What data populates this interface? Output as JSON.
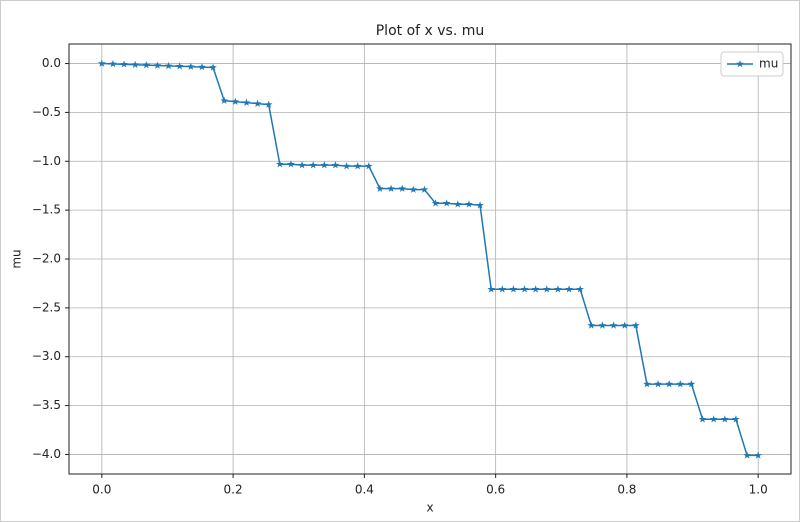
{
  "chart_data": {
    "type": "line",
    "title": "Plot of x vs. mu",
    "x_label": "x",
    "y_label": "mu",
    "x": [
      0,
      0.016949,
      0.033898,
      0.050847,
      0.067797,
      0.084746,
      0.101695,
      0.118644,
      0.135593,
      0.152542,
      0.169492,
      0.186441,
      0.20339,
      0.220339,
      0.237288,
      0.254237,
      0.271186,
      0.288136,
      0.305085,
      0.322034,
      0.338983,
      0.355932,
      0.372881,
      0.389831,
      0.40678,
      0.423729,
      0.440678,
      0.457627,
      0.474576,
      0.491525,
      0.508475,
      0.525424,
      0.542373,
      0.559322,
      0.576271,
      0.59322,
      0.610169,
      0.627119,
      0.644068,
      0.661017,
      0.677966,
      0.694915,
      0.711864,
      0.728814,
      0.745763,
      0.762712,
      0.779661,
      0.79661,
      0.813559,
      0.830508,
      0.847458,
      0.864407,
      0.881356,
      0.898305,
      0.915254,
      0.932203,
      0.949153,
      0.966102,
      0.983051,
      1.0
    ],
    "series": [
      {
        "name": "mu",
        "color": "#1f77b4",
        "marker": "star",
        "values": [
          0,
          -0.004,
          -0.008,
          -0.012,
          -0.016,
          -0.02,
          -0.024,
          -0.028,
          -0.032,
          -0.036,
          -0.04,
          -0.38,
          -0.39,
          -0.4,
          -0.41,
          -0.42,
          -1.03,
          -1.03,
          -1.04,
          -1.04,
          -1.04,
          -1.04,
          -1.05,
          -1.05,
          -1.05,
          -1.28,
          -1.28,
          -1.28,
          -1.29,
          -1.29,
          -1.43,
          -1.43,
          -1.44,
          -1.44,
          -1.45,
          -2.31,
          -2.31,
          -2.31,
          -2.31,
          -2.31,
          -2.31,
          -2.31,
          -2.31,
          -2.31,
          -2.68,
          -2.68,
          -2.68,
          -2.68,
          -2.68,
          -3.28,
          -3.28,
          -3.28,
          -3.28,
          -3.28,
          -3.64,
          -3.64,
          -3.64,
          -3.64,
          -4.01,
          -4.01
        ]
      }
    ],
    "xlim": [
      -0.05,
      1.05
    ],
    "xticks": [
      {
        "value": 0,
        "label": "0.0"
      },
      {
        "value": 0.2,
        "label": "0.2"
      },
      {
        "value": 0.4,
        "label": "0.4"
      },
      {
        "value": 0.6,
        "label": "0.6"
      },
      {
        "value": 0.8,
        "label": "0.8"
      },
      {
        "value": 1.0,
        "label": "1.0"
      }
    ],
    "ylim": [
      -4.2,
      0.2
    ],
    "yticks": [
      {
        "value": 0,
        "label": "0.0"
      },
      {
        "value": -0.5,
        "label": "−0.5"
      },
      {
        "value": -1.0,
        "label": "−1.0"
      },
      {
        "value": -1.5,
        "label": "−1.5"
      },
      {
        "value": -2.0,
        "label": "−2.0"
      },
      {
        "value": -2.5,
        "label": "−2.5"
      },
      {
        "value": -3.0,
        "label": "−3.0"
      },
      {
        "value": -3.5,
        "label": "−3.5"
      },
      {
        "value": -4.0,
        "label": "−4.0"
      }
    ],
    "grid": true,
    "legend": "upper right"
  }
}
